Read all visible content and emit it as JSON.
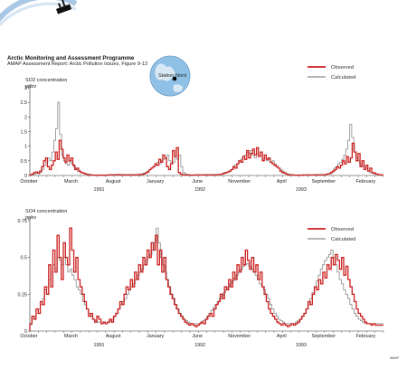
{
  "header": {
    "title": "Arctic Monitoring and Assessment Programme",
    "subtitle": "AMAP Assessment Report: Arctic Pollution Issues, Figure 9-13"
  },
  "credit": "AMAP",
  "colors": {
    "observed": "#cc2020",
    "calculated": "#8a8a8a",
    "globe": "#7fb6e0"
  },
  "inset": {
    "label": "Station Nord"
  },
  "chart_data": [
    {
      "type": "line",
      "ylabel": "SO2 concentration",
      "yunit": "ppbv",
      "ylim": [
        0,
        3.0
      ],
      "yticks": [
        0,
        0.5,
        1.0,
        1.5,
        2.0,
        2.5,
        3.0
      ],
      "ytick_labels": [
        "0",
        "0.5",
        "1",
        "1.5",
        "2",
        "2.5",
        "3"
      ],
      "xmonths": 29,
      "month_labels": [
        {
          "m": 0,
          "label": "October"
        },
        {
          "m": 5,
          "label": "March"
        },
        {
          "m": 10,
          "label": "August"
        },
        {
          "m": 15,
          "label": "January"
        },
        {
          "m": 20,
          "label": "June"
        },
        {
          "m": 25,
          "label": "November"
        }
      ],
      "month_labels_2": [
        {
          "m": 30,
          "label": "April"
        },
        {
          "m": 35,
          "label": "September"
        },
        {
          "m": 40,
          "label": "February"
        }
      ],
      "year_labels": [
        {
          "m": 8,
          "label": "1991"
        },
        {
          "m": 20,
          "label": "1992"
        },
        {
          "m": 32,
          "label": "1993"
        }
      ],
      "legend": [
        {
          "name": "Observed"
        },
        {
          "name": "Calculated"
        }
      ],
      "series": [
        {
          "name": "Observed",
          "values": [
            0.02,
            0.05,
            0.1,
            0.12,
            0.08,
            0.15,
            0.3,
            0.5,
            0.6,
            0.3,
            0.2,
            0.35,
            0.5,
            0.8,
            0.55,
            1.2,
            0.9,
            0.6,
            0.45,
            0.7,
            0.5,
            0.6,
            0.35,
            0.2,
            0.25,
            0.15,
            0.1,
            0.08,
            0.05,
            0.03,
            0.02,
            0.02,
            0.01,
            0.01,
            0.01,
            0.01,
            0.01,
            0.01,
            0.01,
            0.01,
            0.02,
            0.02,
            0.02,
            0.02,
            0.02,
            0.03,
            0.02,
            0.02,
            0.02,
            0.02,
            0.02,
            0.02,
            0.02,
            0.02,
            0.02,
            0.02,
            0.03,
            0.03,
            0.05,
            0.08,
            0.12,
            0.2,
            0.25,
            0.3,
            0.4,
            0.35,
            0.55,
            0.45,
            0.7,
            0.6,
            0.3,
            0.2,
            0.4,
            0.85,
            0.65,
            0.95,
            0.1,
            0.05,
            0.02,
            0.02,
            0.02,
            0.02,
            0.01,
            0.01,
            0.02,
            0.02,
            0.02,
            0.02,
            0.02,
            0.02,
            0.02,
            0.02,
            0.02,
            0.02,
            0.02,
            0.02,
            0.03,
            0.03,
            0.05,
            0.08,
            0.1,
            0.12,
            0.15,
            0.2,
            0.3,
            0.25,
            0.4,
            0.5,
            0.45,
            0.65,
            0.55,
            0.85,
            0.6,
            0.75,
            0.9,
            0.7,
            0.95,
            0.65,
            0.8,
            0.5,
            0.7,
            0.55,
            0.6,
            0.45,
            0.4,
            0.35,
            0.3,
            0.25,
            0.15,
            0.1,
            0.08,
            0.05,
            0.02,
            0.02,
            0.02,
            0.01,
            0.01,
            0.01,
            0.01,
            0.01,
            0.02,
            0.02,
            0.02,
            0.02,
            0.02,
            0.02,
            0.02,
            0.02,
            0.02,
            0.02,
            0.02,
            0.03,
            0.05,
            0.06,
            0.1,
            0.15,
            0.2,
            0.3,
            0.25,
            0.35,
            0.5,
            0.4,
            0.65,
            0.45,
            0.6,
            1.1,
            0.8,
            0.5,
            0.75,
            0.3,
            0.5,
            0.2,
            0.35,
            0.15,
            0.25,
            0.1,
            0.08,
            0.05,
            0.03,
            0.02,
            0.02
          ]
        },
        {
          "name": "Calculated",
          "values": [
            0.02,
            0.03,
            0.05,
            0.08,
            0.06,
            0.1,
            0.2,
            0.35,
            0.45,
            0.6,
            0.5,
            0.8,
            1.2,
            1.6,
            2.5,
            1.4,
            0.7,
            0.5,
            0.4,
            0.35,
            0.5,
            0.4,
            0.3,
            0.2,
            0.15,
            0.12,
            0.1,
            0.08,
            0.06,
            0.05,
            0.03,
            0.02,
            0.02,
            0.02,
            0.02,
            0.02,
            0.02,
            0.02,
            0.02,
            0.02,
            0.02,
            0.03,
            0.03,
            0.03,
            0.03,
            0.03,
            0.03,
            0.03,
            0.03,
            0.03,
            0.03,
            0.03,
            0.03,
            0.03,
            0.03,
            0.04,
            0.05,
            0.08,
            0.1,
            0.15,
            0.2,
            0.25,
            0.3,
            0.35,
            0.45,
            0.4,
            0.5,
            0.55,
            0.6,
            0.7,
            0.5,
            0.4,
            0.45,
            0.6,
            0.55,
            0.7,
            0.3,
            0.1,
            0.05,
            0.03,
            0.02,
            0.02,
            0.02,
            0.02,
            0.02,
            0.02,
            0.02,
            0.02,
            0.03,
            0.03,
            0.03,
            0.03,
            0.03,
            0.03,
            0.03,
            0.03,
            0.04,
            0.05,
            0.08,
            0.1,
            0.15,
            0.2,
            0.25,
            0.35,
            0.4,
            0.5,
            0.55,
            0.65,
            0.7,
            0.8,
            0.75,
            0.85,
            0.7,
            0.6,
            0.75,
            0.65,
            0.7,
            0.55,
            0.6,
            0.5,
            0.55,
            0.45,
            0.5,
            0.4,
            0.3,
            0.25,
            0.2,
            0.15,
            0.1,
            0.06,
            0.04,
            0.03,
            0.02,
            0.02,
            0.02,
            0.02,
            0.02,
            0.02,
            0.02,
            0.02,
            0.02,
            0.02,
            0.02,
            0.03,
            0.03,
            0.03,
            0.03,
            0.03,
            0.03,
            0.04,
            0.06,
            0.1,
            0.15,
            0.25,
            0.3,
            0.4,
            0.45,
            0.55,
            0.7,
            0.9,
            1.2,
            1.75,
            1.3,
            0.8,
            0.6,
            0.5,
            0.4,
            0.35,
            0.3,
            0.25,
            0.15,
            0.1,
            0.08,
            0.05,
            0.04,
            0.03,
            0.02,
            0.02
          ]
        }
      ]
    },
    {
      "type": "line",
      "ylabel": "SO4 concentration",
      "yunit": "ppbv",
      "ylim": [
        0,
        0.75
      ],
      "yticks": [
        0,
        0.25,
        0.5,
        0.75
      ],
      "ytick_labels": [
        "0",
        "0.25",
        "0.5",
        "0.75"
      ],
      "month_labels": [
        {
          "m": 0,
          "label": "October"
        },
        {
          "m": 5,
          "label": "March"
        },
        {
          "m": 10,
          "label": "August"
        },
        {
          "m": 15,
          "label": "January"
        },
        {
          "m": 20,
          "label": "June"
        },
        {
          "m": 25,
          "label": "November"
        }
      ],
      "month_labels_2": [
        {
          "m": 30,
          "label": "April"
        },
        {
          "m": 35,
          "label": "September"
        },
        {
          "m": 40,
          "label": "February"
        }
      ],
      "year_labels": [
        {
          "m": 8,
          "label": "1991"
        },
        {
          "m": 20,
          "label": "1992"
        },
        {
          "m": 32,
          "label": "1993"
        }
      ],
      "legend": [
        {
          "name": "Observed"
        },
        {
          "name": "Calculated"
        }
      ],
      "series": [
        {
          "name": "Observed",
          "values": [
            0.05,
            0.1,
            0.08,
            0.15,
            0.12,
            0.2,
            0.18,
            0.3,
            0.25,
            0.45,
            0.3,
            0.55,
            0.4,
            0.65,
            0.5,
            0.35,
            0.6,
            0.5,
            0.45,
            0.7,
            0.55,
            0.4,
            0.5,
            0.35,
            0.3,
            0.25,
            0.2,
            0.15,
            0.1,
            0.12,
            0.08,
            0.06,
            0.1,
            0.08,
            0.05,
            0.06,
            0.05,
            0.06,
            0.08,
            0.06,
            0.1,
            0.12,
            0.15,
            0.2,
            0.18,
            0.25,
            0.3,
            0.28,
            0.35,
            0.3,
            0.4,
            0.35,
            0.45,
            0.4,
            0.5,
            0.45,
            0.55,
            0.5,
            0.6,
            0.55,
            0.65,
            0.45,
            0.55,
            0.4,
            0.5,
            0.35,
            0.3,
            0.25,
            0.22,
            0.18,
            0.15,
            0.12,
            0.1,
            0.08,
            0.06,
            0.05,
            0.04,
            0.05,
            0.04,
            0.03,
            0.04,
            0.05,
            0.06,
            0.05,
            0.08,
            0.1,
            0.12,
            0.1,
            0.15,
            0.18,
            0.2,
            0.25,
            0.22,
            0.3,
            0.28,
            0.35,
            0.3,
            0.4,
            0.35,
            0.45,
            0.4,
            0.5,
            0.45,
            0.55,
            0.48,
            0.42,
            0.5,
            0.4,
            0.45,
            0.35,
            0.4,
            0.3,
            0.25,
            0.2,
            0.15,
            0.12,
            0.1,
            0.08,
            0.06,
            0.05,
            0.04,
            0.05,
            0.04,
            0.03,
            0.04,
            0.05,
            0.04,
            0.05,
            0.06,
            0.08,
            0.1,
            0.12,
            0.15,
            0.2,
            0.18,
            0.25,
            0.3,
            0.28,
            0.35,
            0.32,
            0.4,
            0.36,
            0.45,
            0.42,
            0.5,
            0.45,
            0.52,
            0.48,
            0.42,
            0.5,
            0.38,
            0.44,
            0.35,
            0.3,
            0.25,
            0.2,
            0.15,
            0.12,
            0.1,
            0.08,
            0.06,
            0.05,
            0.05,
            0.04,
            0.05,
            0.04,
            0.04,
            0.04,
            0.04
          ]
        },
        {
          "name": "Calculated",
          "values": [
            0.04,
            0.08,
            0.1,
            0.12,
            0.15,
            0.18,
            0.22,
            0.28,
            0.3,
            0.35,
            0.4,
            0.45,
            0.42,
            0.5,
            0.48,
            0.45,
            0.5,
            0.45,
            0.4,
            0.42,
            0.38,
            0.35,
            0.3,
            0.28,
            0.25,
            0.2,
            0.18,
            0.15,
            0.12,
            0.1,
            0.08,
            0.07,
            0.06,
            0.06,
            0.05,
            0.05,
            0.05,
            0.06,
            0.07,
            0.08,
            0.1,
            0.12,
            0.15,
            0.18,
            0.2,
            0.22,
            0.25,
            0.28,
            0.3,
            0.32,
            0.35,
            0.38,
            0.4,
            0.42,
            0.45,
            0.48,
            0.5,
            0.52,
            0.55,
            0.6,
            0.7,
            0.6,
            0.5,
            0.45,
            0.4,
            0.35,
            0.3,
            0.25,
            0.22,
            0.18,
            0.15,
            0.12,
            0.1,
            0.08,
            0.07,
            0.06,
            0.05,
            0.05,
            0.05,
            0.05,
            0.05,
            0.06,
            0.07,
            0.08,
            0.1,
            0.12,
            0.14,
            0.16,
            0.18,
            0.2,
            0.22,
            0.24,
            0.26,
            0.28,
            0.3,
            0.32,
            0.34,
            0.36,
            0.38,
            0.4,
            0.42,
            0.44,
            0.45,
            0.46,
            0.44,
            0.42,
            0.4,
            0.38,
            0.35,
            0.32,
            0.3,
            0.28,
            0.25,
            0.22,
            0.18,
            0.15,
            0.12,
            0.1,
            0.08,
            0.07,
            0.06,
            0.05,
            0.05,
            0.05,
            0.05,
            0.05,
            0.06,
            0.07,
            0.08,
            0.1,
            0.12,
            0.15,
            0.18,
            0.22,
            0.26,
            0.3,
            0.34,
            0.38,
            0.42,
            0.45,
            0.48,
            0.5,
            0.52,
            0.55,
            0.5,
            0.45,
            0.4,
            0.35,
            0.32,
            0.28,
            0.25,
            0.22,
            0.18,
            0.15,
            0.12,
            0.1,
            0.08,
            0.07,
            0.06,
            0.05,
            0.05,
            0.05,
            0.05,
            0.05,
            0.05,
            0.05,
            0.05,
            0.05
          ]
        }
      ]
    }
  ]
}
